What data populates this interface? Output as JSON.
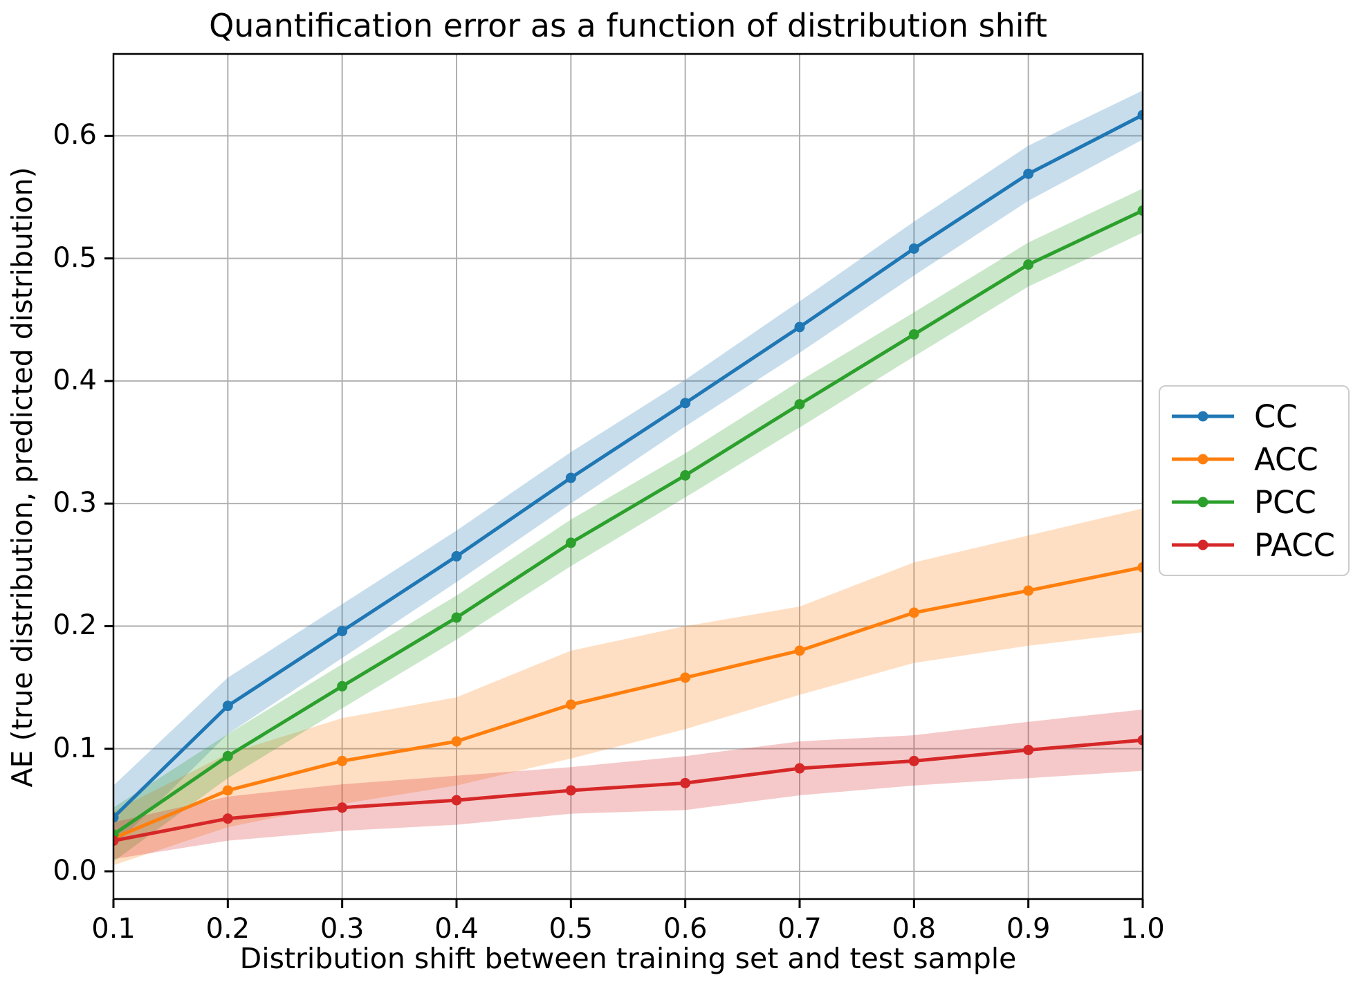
{
  "chart_data": {
    "type": "line",
    "title": "Quantification error as a function of distribution shift",
    "xlabel": "Distribution shift between training set and test sample",
    "ylabel": "AE (true distribution, predicted distribution)",
    "grid": true,
    "legend_position": "center-right outside axes",
    "xlim": [
      0.1,
      1.0
    ],
    "ylim": [
      -0.0226,
      0.6668
    ],
    "x": [
      0.1,
      0.2,
      0.3,
      0.4,
      0.5,
      0.6,
      0.7,
      0.8,
      0.9,
      1.0
    ],
    "x_tick_labels": [
      "0.1",
      "0.2",
      "0.3",
      "0.4",
      "0.5",
      "0.6",
      "0.7",
      "0.8",
      "0.9",
      "1.0"
    ],
    "y_tick_values": [
      0.0,
      0.1,
      0.2,
      0.3,
      0.4,
      0.5,
      0.6
    ],
    "y_tick_labels": [
      "0.0",
      "0.1",
      "0.2",
      "0.3",
      "0.4",
      "0.5",
      "0.6"
    ],
    "band_alpha": 0.25,
    "colors": {
      "grid": "#b0b0b0",
      "spine": "#000000",
      "cc": "#1f77b4",
      "acc": "#ff7f0e",
      "pcc": "#2ca02c",
      "pacc": "#d62728"
    },
    "series": [
      {
        "name": "CC",
        "color": "#1f77b4",
        "values": [
          0.044,
          0.135,
          0.196,
          0.257,
          0.321,
          0.382,
          0.444,
          0.508,
          0.569,
          0.617
        ],
        "band_lower": [
          0.02,
          0.112,
          0.174,
          0.236,
          0.3,
          0.363,
          0.423,
          0.486,
          0.547,
          0.597
        ],
        "band_upper": [
          0.07,
          0.158,
          0.218,
          0.278,
          0.342,
          0.401,
          0.465,
          0.53,
          0.592,
          0.637
        ]
      },
      {
        "name": "ACC",
        "color": "#ff7f0e",
        "values": [
          0.027,
          0.066,
          0.09,
          0.106,
          0.136,
          0.158,
          0.18,
          0.211,
          0.229,
          0.248
        ],
        "band_lower": [
          0.005,
          0.036,
          0.055,
          0.07,
          0.092,
          0.116,
          0.144,
          0.17,
          0.184,
          0.195
        ],
        "band_upper": [
          0.049,
          0.096,
          0.125,
          0.142,
          0.18,
          0.2,
          0.216,
          0.252,
          0.274,
          0.296
        ]
      },
      {
        "name": "PCC",
        "color": "#2ca02c",
        "values": [
          0.03,
          0.094,
          0.151,
          0.207,
          0.268,
          0.323,
          0.381,
          0.438,
          0.495,
          0.539
        ],
        "band_lower": [
          0.008,
          0.076,
          0.133,
          0.189,
          0.249,
          0.305,
          0.362,
          0.42,
          0.477,
          0.521
        ],
        "band_upper": [
          0.052,
          0.112,
          0.169,
          0.225,
          0.287,
          0.341,
          0.4,
          0.456,
          0.513,
          0.557
        ]
      },
      {
        "name": "PACC",
        "color": "#d62728",
        "values": [
          0.025,
          0.043,
          0.052,
          0.058,
          0.066,
          0.072,
          0.084,
          0.09,
          0.099,
          0.107
        ],
        "band_lower": [
          0.01,
          0.025,
          0.033,
          0.038,
          0.047,
          0.05,
          0.062,
          0.07,
          0.076,
          0.082
        ],
        "band_upper": [
          0.04,
          0.061,
          0.071,
          0.078,
          0.085,
          0.094,
          0.106,
          0.111,
          0.122,
          0.132
        ]
      }
    ]
  }
}
